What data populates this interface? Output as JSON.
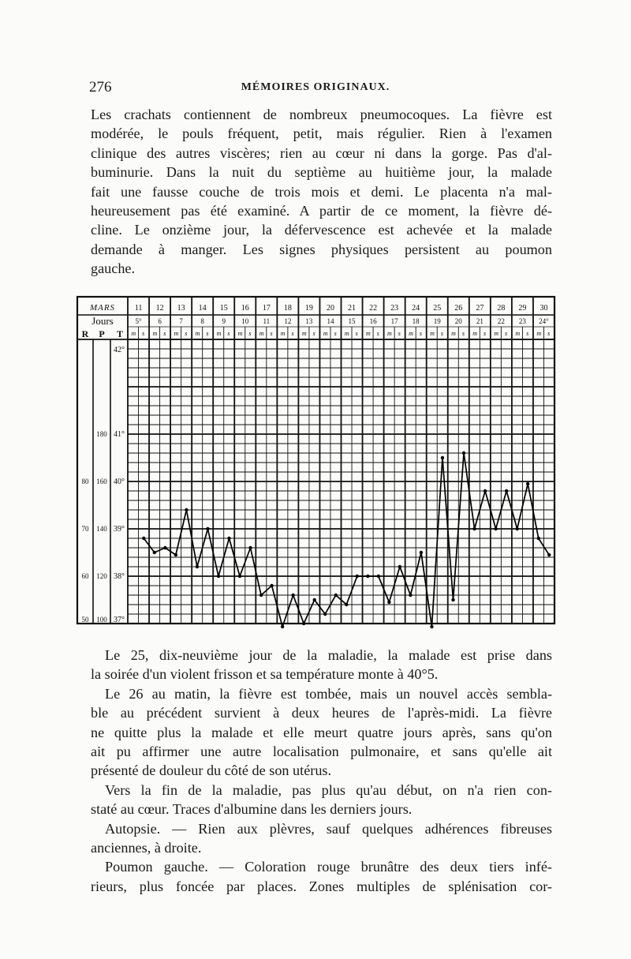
{
  "page": {
    "page_number": "276",
    "running_head": "MÉMOIRES ORIGINAUX."
  },
  "text_top": [
    {
      "text": "Les crachats contiennent de nombreux pneumocoques. La fièvre est"
    },
    {
      "text": "modérée, le pouls fréquent, petit, mais régulier. Rien à l'examen"
    },
    {
      "text": "clinique des autres viscères; rien au cœur ni dans la gorge. Pas d'al-"
    },
    {
      "text": "buminurie. Dans la nuit du septième au huitième jour, la malade"
    },
    {
      "text": "fait une fausse couche de trois mois et demi. Le placenta n'a mal-"
    },
    {
      "text": "heureusement pas été examiné. A partir de ce moment, la fièvre dé-"
    },
    {
      "text": "cline. Le onzième jour, la défervescence est achevée et la malade"
    },
    {
      "text": "demande à manger. Les signes physiques persistent au poumon"
    },
    {
      "text": "gauche.",
      "last": true
    }
  ],
  "text_bottom": [
    {
      "text": "Le 25, dix-neuvième jour de la maladie, la malade est prise dans",
      "indent": true
    },
    {
      "text": "la soirée d'un violent frisson et sa température monte à 40°5.",
      "last": true
    },
    {
      "text": "Le 26 au matin, la fièvre est tombée, mais un nouvel accès sembla-",
      "indent": true
    },
    {
      "text": "ble au précédent survient à deux heures de l'après-midi. La fièvre"
    },
    {
      "text": "ne quitte plus la malade et elle meurt quatre jours après, sans qu'on"
    },
    {
      "text": "ait pu affirmer une autre localisation pulmonaire, et sans qu'elle ait"
    },
    {
      "text": "présenté de douleur du côté de son utérus.",
      "last": true
    },
    {
      "text": "Vers la fin de la maladie, pas plus qu'au début, on n'a rien con-",
      "indent": true
    },
    {
      "text": "staté au cœur. Traces d'albumine dans les derniers jours.",
      "last": true
    },
    {
      "text": "Autopsie. — Rien aux plèvres, sauf quelques adhérences fibreuses",
      "indent": true
    },
    {
      "text": "anciennes, à droite.",
      "last": true
    },
    {
      "text": "Poumon gauche. — Coloration rouge brunâtre des deux tiers infé-",
      "indent": true
    },
    {
      "text": "rieurs, plus foncée par places. Zones multiples de splénisation cor-"
    }
  ],
  "chart_data": {
    "type": "line",
    "month_label": "MARS",
    "days_label": "Jours",
    "column_labels": [
      "R",
      "P",
      "T"
    ],
    "dates": [
      "11",
      "12",
      "13",
      "14",
      "15",
      "16",
      "17",
      "18",
      "19",
      "20",
      "21",
      "22",
      "23",
      "24",
      "25",
      "26",
      "27",
      "28",
      "29",
      "30"
    ],
    "illness_days": [
      "5°",
      "6",
      "7",
      "8",
      "9",
      "10",
      "11",
      "12",
      "13",
      "14",
      "15",
      "16",
      "17",
      "18",
      "19",
      "20",
      "21",
      "22",
      "23",
      "24°"
    ],
    "time_labels": [
      "m",
      "s"
    ],
    "temperature_ticks": [
      "42°",
      "41°",
      "40°",
      "39°",
      "38°",
      "37°"
    ],
    "pulse_ticks": [
      "180",
      "160",
      "140",
      "120",
      "100"
    ],
    "respiration_ticks": [
      "80",
      "70",
      "60",
      "50"
    ],
    "ylim": [
      37,
      43
    ],
    "grid": true,
    "series": [
      {
        "points": [
          {
            "day": "5°",
            "time": "s",
            "temp": 38.8
          },
          {
            "day": "6",
            "time": "m",
            "temp": 38.5
          },
          {
            "day": "6",
            "time": "s",
            "temp": 38.6
          },
          {
            "day": "7",
            "time": "m",
            "temp": 38.45
          },
          {
            "day": "7",
            "time": "s",
            "temp": 39.4
          },
          {
            "day": "8",
            "time": "m",
            "temp": 38.2
          },
          {
            "day": "8",
            "time": "s",
            "temp": 39.0
          },
          {
            "day": "9",
            "time": "m",
            "temp": 38.0
          },
          {
            "day": "9",
            "time": "s",
            "temp": 38.8
          },
          {
            "day": "10",
            "time": "m",
            "temp": 38.0
          },
          {
            "day": "10",
            "time": "s",
            "temp": 38.6
          },
          {
            "day": "11",
            "time": "m",
            "temp": 37.6
          },
          {
            "day": "11",
            "time": "s",
            "temp": 37.8
          },
          {
            "day": "12",
            "time": "m",
            "temp": 36.9
          },
          {
            "day": "12",
            "time": "s",
            "temp": 37.6
          },
          {
            "day": "13",
            "time": "m",
            "temp": 37.0
          },
          {
            "day": "13",
            "time": "s",
            "temp": 37.5
          },
          {
            "day": "14",
            "time": "m",
            "temp": 37.2
          },
          {
            "day": "14",
            "time": "s",
            "temp": 37.6
          },
          {
            "day": "15",
            "time": "m",
            "temp": 37.4
          },
          {
            "day": "15",
            "time": "s",
            "temp": 38.0
          },
          {
            "day": "16",
            "time": "m",
            "temp": 38.0
          },
          {
            "day": "16",
            "time": "s",
            "temp": 38.0
          },
          {
            "day": "17",
            "time": "m",
            "temp": 37.45
          },
          {
            "day": "17",
            "time": "s",
            "temp": 38.2
          },
          {
            "day": "18",
            "time": "m",
            "temp": 37.6
          },
          {
            "day": "18",
            "time": "s",
            "temp": 38.5
          },
          {
            "day": "19",
            "time": "m",
            "temp": 36.8
          },
          {
            "day": "19",
            "time": "s",
            "temp": 40.5
          },
          {
            "day": "20",
            "time": "m",
            "temp": 37.5
          },
          {
            "day": "20",
            "time": "s",
            "temp": 40.6
          },
          {
            "day": "21",
            "time": "m",
            "temp": 39.0
          },
          {
            "day": "21",
            "time": "s",
            "temp": 39.8
          },
          {
            "day": "22",
            "time": "m",
            "temp": 39.0
          },
          {
            "day": "22",
            "time": "s",
            "temp": 39.8
          },
          {
            "day": "23",
            "time": "m",
            "temp": 39.0
          },
          {
            "day": "23",
            "time": "s",
            "temp": 39.95
          },
          {
            "day": "24°",
            "time": "m",
            "temp": 38.8
          },
          {
            "day": "24°",
            "time": "s",
            "temp": 38.45
          }
        ]
      }
    ]
  }
}
